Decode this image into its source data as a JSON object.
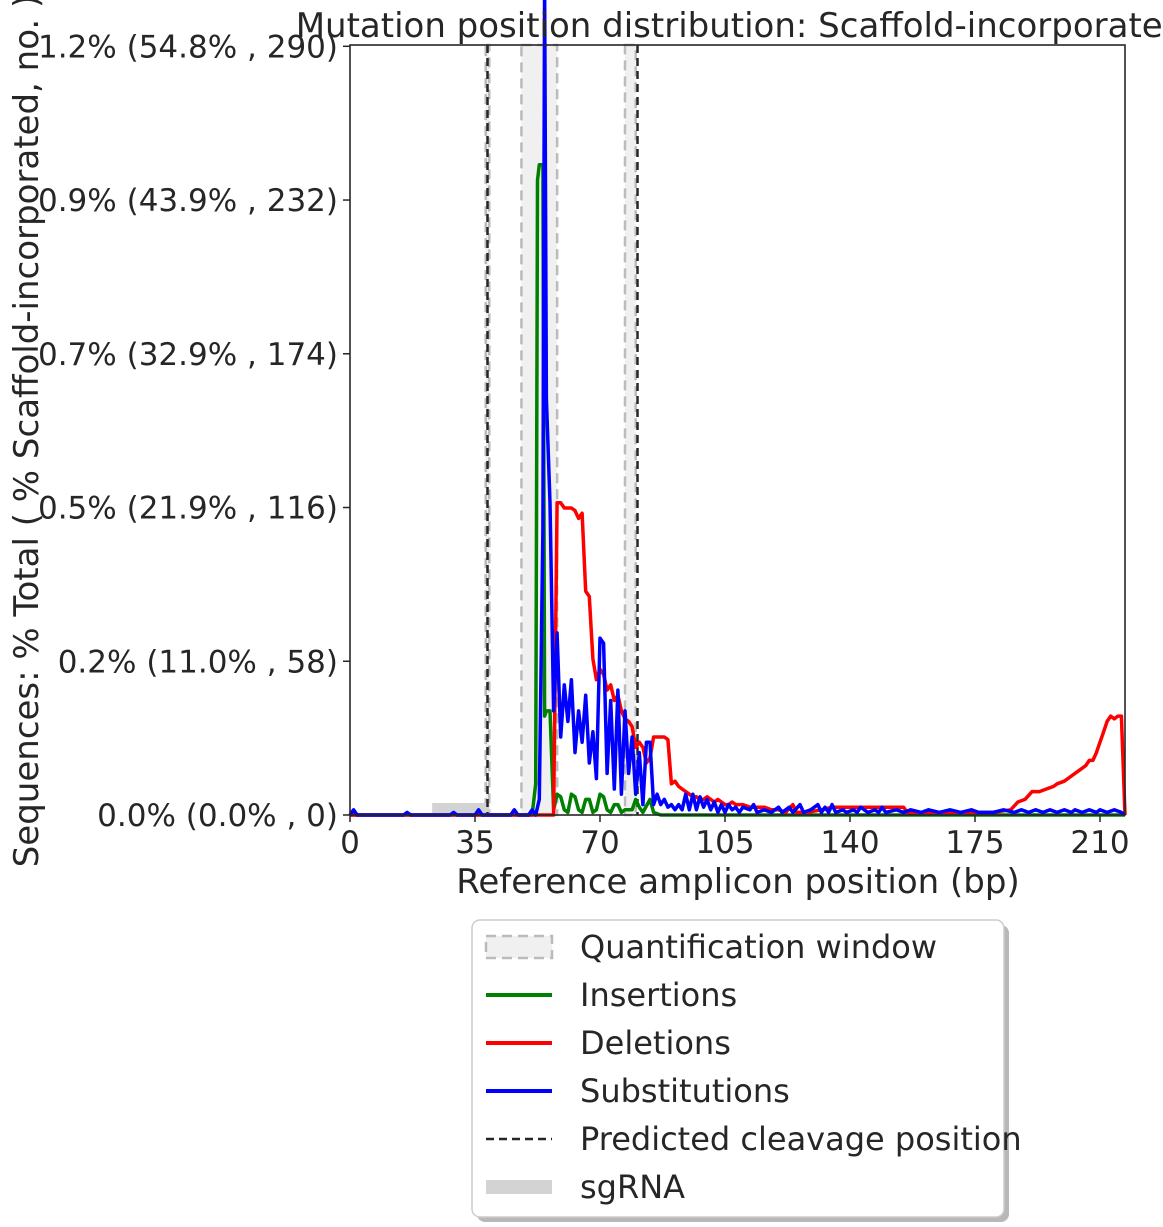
{
  "chart_data": {
    "type": "line",
    "title": "Mutation position distribution: Scaffold-incorporated",
    "xlabel": "Reference amplicon position (bp)",
    "ylabel": "Sequences: % Total ( % Scaffold-incorporated, no. )",
    "xlim": [
      0,
      217
    ],
    "ylim": [
      0,
      1.48
    ],
    "x_ticks": [
      0,
      35,
      70,
      105,
      140,
      175,
      210
    ],
    "y_ticks": [
      {
        "value": 0.0,
        "label": "0.0% (0.0% , 0)"
      },
      {
        "value": 0.2955,
        "label": "0.2% (11.0% , 58)"
      },
      {
        "value": 0.591,
        "label": "0.5% (21.9% , 116)"
      },
      {
        "value": 0.8865,
        "label": "0.7% (32.9% , 174)"
      },
      {
        "value": 1.182,
        "label": "0.9% (43.9% , 232)"
      },
      {
        "value": 1.4775,
        "label": "1.2% (54.8% , 290)"
      }
    ],
    "grid": false,
    "legend_position": "below",
    "quantification_windows": [
      [
        38,
        39
      ],
      [
        48,
        58
      ],
      [
        77,
        80
      ]
    ],
    "predicted_cleavage_positions": [
      38.5,
      80.5
    ],
    "sgrna": [
      [
        23,
        39
      ]
    ],
    "colors": {
      "insertions": "#008000",
      "deletions": "#ff0000",
      "substitutions": "#0000ff",
      "window_fill": "#f0f0f0",
      "window_edge": "#bbbbbb",
      "cleavage": "#262626",
      "sgrna": "#d3d3d3"
    },
    "series": [
      {
        "name": "Insertions",
        "key": "insertions",
        "points": [
          [
            0,
            0
          ],
          [
            51,
            0
          ],
          [
            52,
            0.06
          ],
          [
            52.5,
            1.22
          ],
          [
            53,
            1.25
          ],
          [
            54,
            1.25
          ],
          [
            54.5,
            0.19
          ],
          [
            55,
            0.2
          ],
          [
            56,
            0.2
          ],
          [
            57,
            0.01
          ],
          [
            58,
            0.04
          ],
          [
            59,
            0.035
          ],
          [
            60,
            0.01
          ],
          [
            61,
            0.005
          ],
          [
            62,
            0.04
          ],
          [
            63,
            0.035
          ],
          [
            64,
            0.01
          ],
          [
            65,
            0.005
          ],
          [
            66,
            0.03
          ],
          [
            67,
            0.03
          ],
          [
            68,
            0.005
          ],
          [
            69,
            0.01
          ],
          [
            70,
            0.04
          ],
          [
            71,
            0.035
          ],
          [
            72,
            0.01
          ],
          [
            73,
            0.005
          ],
          [
            74,
            0.02
          ],
          [
            75,
            0.02
          ],
          [
            76,
            0.005
          ],
          [
            77,
            0.01
          ],
          [
            78,
            0.01
          ],
          [
            79,
            0.01
          ],
          [
            80,
            0.03
          ],
          [
            81,
            0.015
          ],
          [
            82,
            0.005
          ],
          [
            84,
            0.03
          ],
          [
            85,
            0.005
          ],
          [
            87,
            0.0
          ],
          [
            217,
            0
          ]
        ]
      },
      {
        "name": "Deletions",
        "key": "deletions",
        "points": [
          [
            0,
            0
          ],
          [
            57,
            0
          ],
          [
            58,
            0.6
          ],
          [
            59,
            0.6
          ],
          [
            60,
            0.59
          ],
          [
            61,
            0.59
          ],
          [
            62,
            0.59
          ],
          [
            63,
            0.585
          ],
          [
            64,
            0.57
          ],
          [
            65,
            0.58
          ],
          [
            66,
            0.43
          ],
          [
            67,
            0.42
          ],
          [
            68,
            0.3
          ],
          [
            69,
            0.26
          ],
          [
            70,
            0.28
          ],
          [
            71,
            0.27
          ],
          [
            72,
            0.24
          ],
          [
            73,
            0.25
          ],
          [
            74,
            0.22
          ],
          [
            75,
            0.23
          ],
          [
            76,
            0.2
          ],
          [
            77,
            0.185
          ],
          [
            78,
            0.18
          ],
          [
            79,
            0.17
          ],
          [
            80,
            0.13
          ],
          [
            81,
            0.14
          ],
          [
            82,
            0.13
          ],
          [
            83,
            0.1
          ],
          [
            84,
            0.11
          ],
          [
            85,
            0.15
          ],
          [
            86,
            0.15
          ],
          [
            87,
            0.15
          ],
          [
            88,
            0.15
          ],
          [
            89,
            0.145
          ],
          [
            90,
            0.06
          ],
          [
            91,
            0.065
          ],
          [
            92,
            0.055
          ],
          [
            93,
            0.05
          ],
          [
            94,
            0.045
          ],
          [
            95,
            0.04
          ],
          [
            96,
            0.035
          ],
          [
            97,
            0.035
          ],
          [
            98,
            0.03
          ],
          [
            99,
            0.03
          ],
          [
            100,
            0.035
          ],
          [
            101,
            0.03
          ],
          [
            102,
            0.025
          ],
          [
            103,
            0.03
          ],
          [
            104,
            0.025
          ],
          [
            105,
            0.02
          ],
          [
            106,
            0.02
          ],
          [
            107,
            0.025
          ],
          [
            108,
            0.02
          ],
          [
            110,
            0.02
          ],
          [
            112,
            0.015
          ],
          [
            114,
            0.015
          ],
          [
            116,
            0.015
          ],
          [
            118,
            0.01
          ],
          [
            120,
            0.01
          ],
          [
            122,
            0.005
          ],
          [
            124,
            0.02
          ],
          [
            125,
            0.005
          ],
          [
            128,
            0.005
          ],
          [
            132,
            0.01
          ],
          [
            135,
            0.015
          ],
          [
            140,
            0.015
          ],
          [
            145,
            0.015
          ],
          [
            150,
            0.015
          ],
          [
            155,
            0.015
          ],
          [
            156,
            0.005
          ],
          [
            160,
            0.005
          ],
          [
            165,
            0.005
          ],
          [
            170,
            0.005
          ],
          [
            175,
            0.005
          ],
          [
            180,
            0.005
          ],
          [
            185,
            0.01
          ],
          [
            187,
            0.025
          ],
          [
            189,
            0.03
          ],
          [
            191,
            0.045
          ],
          [
            193,
            0.045
          ],
          [
            195,
            0.05
          ],
          [
            197,
            0.055
          ],
          [
            198,
            0.06
          ],
          [
            200,
            0.065
          ],
          [
            202,
            0.075
          ],
          [
            204,
            0.085
          ],
          [
            206,
            0.095
          ],
          [
            207,
            0.105
          ],
          [
            208,
            0.105
          ],
          [
            209,
            0.12
          ],
          [
            210,
            0.14
          ],
          [
            211,
            0.16
          ],
          [
            212,
            0.18
          ],
          [
            213,
            0.19
          ],
          [
            214,
            0.185
          ],
          [
            215,
            0.19
          ],
          [
            216,
            0.19
          ],
          [
            217,
            0
          ]
        ]
      },
      {
        "name": "Substitutions",
        "key": "substitutions",
        "points": [
          [
            0,
            0
          ],
          [
            1,
            0.01
          ],
          [
            2,
            0
          ],
          [
            15,
            0
          ],
          [
            16,
            0.005
          ],
          [
            17,
            0
          ],
          [
            28,
            0
          ],
          [
            29,
            0.005
          ],
          [
            30,
            0
          ],
          [
            35,
            0
          ],
          [
            36,
            0.01
          ],
          [
            37,
            0
          ],
          [
            45,
            0
          ],
          [
            46,
            0.01
          ],
          [
            47,
            0
          ],
          [
            50,
            0
          ],
          [
            51,
            0.01
          ],
          [
            52,
            0
          ],
          [
            53,
            0.03
          ],
          [
            54,
            0.55
          ],
          [
            54.5,
            1.6
          ],
          [
            55,
            0.8
          ],
          [
            56,
            0.6
          ],
          [
            57,
            0.2
          ],
          [
            58,
            0.35
          ],
          [
            59,
            0.15
          ],
          [
            60,
            0.25
          ],
          [
            61,
            0.18
          ],
          [
            62,
            0.26
          ],
          [
            63,
            0.12
          ],
          [
            64,
            0.2
          ],
          [
            65,
            0.14
          ],
          [
            66,
            0.23
          ],
          [
            67,
            0.1
          ],
          [
            68,
            0.16
          ],
          [
            69,
            0.07
          ],
          [
            70,
            0.34
          ],
          [
            71,
            0.33
          ],
          [
            72,
            0.08
          ],
          [
            73,
            0.22
          ],
          [
            74,
            0.05
          ],
          [
            75,
            0.24
          ],
          [
            76,
            0.04
          ],
          [
            77,
            0.2
          ],
          [
            78,
            0.08
          ],
          [
            79,
            0.15
          ],
          [
            80,
            0.04
          ],
          [
            81,
            0.12
          ],
          [
            82,
            0.02
          ],
          [
            83,
            0.14
          ],
          [
            84,
            0.14
          ],
          [
            85,
            0.02
          ],
          [
            86,
            0.04
          ],
          [
            87,
            0.02
          ],
          [
            88,
            0.03
          ],
          [
            89,
            0.015
          ],
          [
            90,
            0.02
          ],
          [
            91,
            0.01
          ],
          [
            92,
            0.02
          ],
          [
            93,
            0.01
          ],
          [
            94,
            0.04
          ],
          [
            95,
            0.01
          ],
          [
            96,
            0.04
          ],
          [
            97,
            0.01
          ],
          [
            98,
            0.035
          ],
          [
            99,
            0.015
          ],
          [
            100,
            0.03
          ],
          [
            101,
            0.01
          ],
          [
            102,
            0.025
          ],
          [
            103,
            0.005
          ],
          [
            104,
            0.02
          ],
          [
            105,
            0.005
          ],
          [
            106,
            0.02
          ],
          [
            107,
            0.01
          ],
          [
            108,
            0.015
          ],
          [
            109,
            0.005
          ],
          [
            110,
            0.015
          ],
          [
            112,
            0.01
          ],
          [
            113,
            0.02
          ],
          [
            114,
            0.005
          ],
          [
            116,
            0.01
          ],
          [
            118,
            0.005
          ],
          [
            120,
            0.015
          ],
          [
            121,
            0.005
          ],
          [
            123,
            0.015
          ],
          [
            124,
            0.005
          ],
          [
            126,
            0.02
          ],
          [
            127,
            0.005
          ],
          [
            129,
            0.01
          ],
          [
            131,
            0.02
          ],
          [
            132,
            0.005
          ],
          [
            133,
            0.015
          ],
          [
            134,
            0.005
          ],
          [
            135,
            0.02
          ],
          [
            136,
            0.005
          ],
          [
            138,
            0.01
          ],
          [
            139,
            0.005
          ],
          [
            141,
            0.01
          ],
          [
            142,
            0.005
          ],
          [
            143,
            0.015
          ],
          [
            145,
            0.005
          ],
          [
            147,
            0.01
          ],
          [
            148,
            0.005
          ],
          [
            149,
            0.015
          ],
          [
            150,
            0.005
          ],
          [
            153,
            0.01
          ],
          [
            155,
            0.005
          ],
          [
            157,
            0.01
          ],
          [
            160,
            0.005
          ],
          [
            162,
            0.01
          ],
          [
            165,
            0.005
          ],
          [
            168,
            0.01
          ],
          [
            171,
            0.005
          ],
          [
            174,
            0.01
          ],
          [
            176,
            0.005
          ],
          [
            180,
            0.005
          ],
          [
            183,
            0.01
          ],
          [
            186,
            0.005
          ],
          [
            188,
            0.01
          ],
          [
            190,
            0.005
          ],
          [
            192,
            0.01
          ],
          [
            194,
            0.005
          ],
          [
            196,
            0.01
          ],
          [
            198,
            0.005
          ],
          [
            200,
            0.01
          ],
          [
            202,
            0.005
          ],
          [
            203,
            0.01
          ],
          [
            205,
            0.005
          ],
          [
            207,
            0.01
          ],
          [
            209,
            0.005
          ],
          [
            210,
            0.01
          ],
          [
            212,
            0.005
          ],
          [
            214,
            0.01
          ],
          [
            216,
            0.005
          ],
          [
            217,
            0
          ]
        ]
      }
    ],
    "legend": [
      {
        "key": "window",
        "label": "Quantification window"
      },
      {
        "key": "insertions",
        "label": "Insertions"
      },
      {
        "key": "deletions",
        "label": "Deletions"
      },
      {
        "key": "substitutions",
        "label": "Substitutions"
      },
      {
        "key": "cleavage",
        "label": "Predicted cleavage position"
      },
      {
        "key": "sgrna",
        "label": "sgRNA"
      }
    ]
  }
}
